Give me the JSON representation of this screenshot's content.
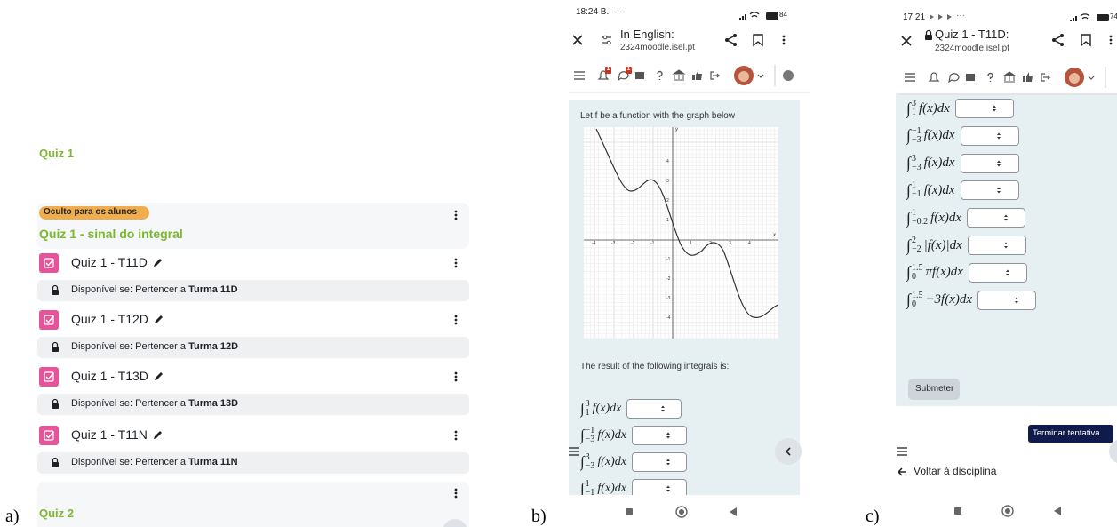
{
  "panel_labels": [
    "a)",
    "b)",
    "c)"
  ],
  "panel_a": {
    "section_title": "Quiz 1",
    "badge": "Oculto para os alunos",
    "subsection_title": "Quiz 1 - sinal do integral",
    "items": [
      {
        "title": "Quiz 1 - T11D",
        "restriction_prefix": "Disponível se: Pertencer a ",
        "restriction_group": "Turma 11D"
      },
      {
        "title": "Quiz 1 - T12D",
        "restriction_prefix": "Disponível se: Pertencer a ",
        "restriction_group": "Turma 12D"
      },
      {
        "title": "Quiz 1 - T13D",
        "restriction_prefix": "Disponível se: Pertencer a ",
        "restriction_group": "Turma 13D"
      },
      {
        "title": "Quiz 1 - T11N",
        "restriction_prefix": "Disponível se: Pertencer a ",
        "restriction_group": "Turma 11N"
      }
    ],
    "next_section_title": "Quiz 2"
  },
  "panel_b": {
    "status_time": "18:24 B. ···",
    "battery": "84",
    "page_title": "In English:",
    "url": "2324moodle.isel.pt",
    "notification_count": "1",
    "message_count": "1",
    "question_text": "Let f be a function with the graph below",
    "graph": {
      "x_ticks": [
        -4,
        -3,
        -2,
        -1,
        1,
        2,
        3,
        4
      ],
      "y_ticks": [
        4,
        3,
        2,
        1,
        -1,
        -2,
        -3,
        -4
      ],
      "x_label": "x",
      "y_label": "y"
    },
    "prompt": "The result of the following integrals is:",
    "integral_sign": "∫",
    "integrals": [
      {
        "lower": "1",
        "upper": "3",
        "integrand": "f(x)dx"
      },
      {
        "lower": "−3",
        "upper": "−1",
        "integrand": "f(x)dx"
      },
      {
        "lower": "−3",
        "upper": "3",
        "integrand": "f(x)dx"
      },
      {
        "lower": "−1",
        "upper": "1",
        "integrand": "f(x)dx"
      }
    ]
  },
  "panel_c": {
    "status_time": "17:21",
    "status_more": "···",
    "battery": "74",
    "page_title": "Quiz 1 - T11D:",
    "url": "2324moodle.isel.pt",
    "integral_sign": "∫",
    "integrals": [
      {
        "lower": "1",
        "upper": "3",
        "integrand": "f(x)dx"
      },
      {
        "lower": "−3",
        "upper": "−1",
        "integrand": "f(x)dx"
      },
      {
        "lower": "−3",
        "upper": "3",
        "integrand": "f(x)dx"
      },
      {
        "lower": "−1",
        "upper": "1",
        "integrand": "f(x)dx"
      },
      {
        "lower": "−0.2",
        "upper": "1",
        "integrand": "f(x)dx"
      },
      {
        "lower": "−2",
        "upper": "2",
        "integrand": "|f(x)|dx"
      },
      {
        "lower": "0",
        "upper": "1.5",
        "integrand": "πf(x)dx"
      },
      {
        "lower": "0",
        "upper": "1.5",
        "integrand": "−3f(x)dx"
      }
    ],
    "submit": "Submeter",
    "finish": "Terminar tentativa",
    "back": "Voltar à disciplina"
  }
}
